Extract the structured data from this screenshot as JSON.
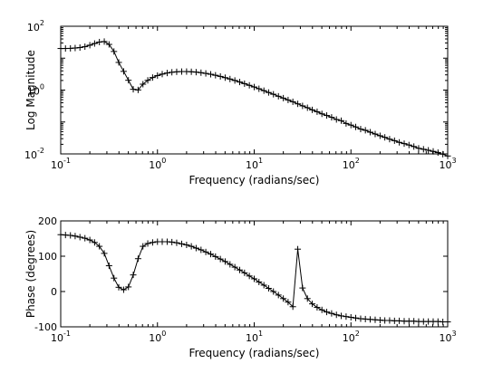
{
  "chart_data": [
    {
      "type": "line",
      "title": "",
      "xlabel": "Frequency (radians/sec)",
      "ylabel": "Log Magnitude",
      "xscale": "log",
      "yscale": "log",
      "xlim": [
        0.1,
        1000
      ],
      "ylim": [
        0.01,
        100
      ],
      "grid": false,
      "legend": "none",
      "marker": "+",
      "color": "#000000",
      "x_ticks": [
        {
          "value": 0.1,
          "base": "10",
          "exp": "-1"
        },
        {
          "value": 1,
          "base": "10",
          "exp": "0"
        },
        {
          "value": 10,
          "base": "10",
          "exp": "1"
        },
        {
          "value": 100,
          "base": "10",
          "exp": "2"
        },
        {
          "value": 1000,
          "base": "10",
          "exp": "3"
        }
      ],
      "y_ticks": [
        {
          "value": 0.01,
          "base": "10",
          "exp": "-2"
        },
        {
          "value": 1,
          "base": "10",
          "exp": "0"
        },
        {
          "value": 100,
          "base": "10",
          "exp": "2"
        }
      ],
      "series": [
        {
          "x": [
            0.1,
            0.112,
            0.126,
            0.141,
            0.158,
            0.178,
            0.2,
            0.224,
            0.251,
            0.282,
            0.316,
            0.355,
            0.398,
            0.447,
            0.501,
            0.562,
            0.631,
            0.708,
            0.794,
            0.891,
            1,
            1.12,
            1.26,
            1.41,
            1.58,
            1.78,
            2,
            2.24,
            2.51,
            2.82,
            3.16,
            3.55,
            3.98,
            4.47,
            5.01,
            5.62,
            6.31,
            7.08,
            7.94,
            8.91,
            10,
            11.2,
            12.6,
            14.1,
            15.8,
            17.8,
            20,
            22.4,
            25.1,
            28.2,
            31.6,
            35.5,
            39.8,
            44.7,
            50.1,
            56.2,
            63.1,
            70.8,
            79.4,
            89.1,
            100,
            112,
            126,
            141,
            158,
            178,
            200,
            224,
            251,
            282,
            316,
            355,
            398,
            447,
            501,
            562,
            631,
            708,
            794,
            891,
            1000
          ],
          "y": [
            20.1,
            20.1,
            20.3,
            20.8,
            21.5,
            22.9,
            25.5,
            28.8,
            32,
            33.2,
            27,
            16.2,
            7.36,
            3.86,
            2.03,
            1.06,
            1.01,
            1.53,
            2.02,
            2.47,
            2.85,
            3.17,
            3.43,
            3.62,
            3.74,
            3.8,
            3.8,
            3.75,
            3.65,
            3.51,
            3.33,
            3.13,
            2.91,
            2.68,
            2.45,
            2.22,
            2,
            1.79,
            1.59,
            1.41,
            1.25,
            1.1,
            0.96,
            0.84,
            0.74,
            0.64,
            0.56,
            0.49,
            0.43,
            0.37,
            0.32,
            0.28,
            0.24,
            0.21,
            0.18,
            0.16,
            0.14,
            0.12,
            0.11,
            0.09,
            0.08,
            0.07,
            0.06,
            0.055,
            0.048,
            0.042,
            0.037,
            0.033,
            0.029,
            0.026,
            0.023,
            0.021,
            0.019,
            0.017,
            0.015,
            0.014,
            0.013,
            0.012,
            0.011,
            0.0098,
            0.0086
          ]
        }
      ]
    },
    {
      "type": "line",
      "title": "",
      "xlabel": "Frequency (radians/sec)",
      "ylabel": "Phase (degrees)",
      "xscale": "log",
      "xlim": [
        0.1,
        1000
      ],
      "ylim": [
        -100,
        200
      ],
      "grid": false,
      "legend": "none",
      "marker": "+",
      "color": "#000000",
      "x_ticks": [
        {
          "value": 0.1,
          "base": "10",
          "exp": "-1"
        },
        {
          "value": 1,
          "base": "10",
          "exp": "0"
        },
        {
          "value": 10,
          "base": "10",
          "exp": "1"
        },
        {
          "value": 100,
          "base": "10",
          "exp": "2"
        },
        {
          "value": 1000,
          "base": "10",
          "exp": "3"
        }
      ],
      "y_ticks": [
        {
          "value": -100,
          "label": "-100"
        },
        {
          "value": 0,
          "label": "0"
        },
        {
          "value": 100,
          "label": "100"
        },
        {
          "value": 200,
          "label": "200"
        }
      ],
      "series": [
        {
          "x": [
            0.1,
            0.112,
            0.126,
            0.141,
            0.158,
            0.178,
            0.2,
            0.224,
            0.251,
            0.282,
            0.316,
            0.355,
            0.398,
            0.447,
            0.501,
            0.562,
            0.631,
            0.708,
            0.794,
            0.891,
            1,
            1.12,
            1.26,
            1.41,
            1.58,
            1.78,
            2,
            2.24,
            2.51,
            2.82,
            3.16,
            3.55,
            3.98,
            4.47,
            5.01,
            5.62,
            6.31,
            7.08,
            7.94,
            8.91,
            10,
            11.2,
            12.6,
            14.1,
            15.8,
            17.8,
            20,
            22.4,
            25.1,
            28.2,
            31.6,
            35.5,
            39.8,
            44.7,
            50.1,
            56.2,
            63.1,
            70.8,
            79.4,
            89.1,
            100,
            112,
            126,
            141,
            158,
            178,
            200,
            224,
            251,
            282,
            316,
            355,
            398,
            447,
            501,
            562,
            631,
            708,
            794,
            891,
            1000
          ],
          "y": [
            161,
            160,
            159,
            157,
            154,
            151,
            146,
            139,
            128,
            108,
            73,
            38,
            12,
            5,
            13,
            47,
            93,
            128,
            136,
            139,
            141,
            141,
            141,
            140,
            138,
            135,
            132,
            128,
            123,
            118,
            112,
            106,
            99,
            92,
            85,
            77,
            69,
            61,
            53,
            44,
            36,
            27,
            18,
            9,
            0,
            -10,
            -20,
            -30,
            -43,
            120,
            10,
            -20,
            -35,
            -45,
            -52,
            -58,
            -62,
            -66,
            -69,
            -71,
            -73,
            -75,
            -77,
            -78,
            -79,
            -80,
            -81,
            -82,
            -82,
            -83,
            -83,
            -84,
            -84,
            -84,
            -85,
            -85,
            -85,
            -85,
            -85,
            -86,
            -86
          ]
        }
      ]
    }
  ]
}
